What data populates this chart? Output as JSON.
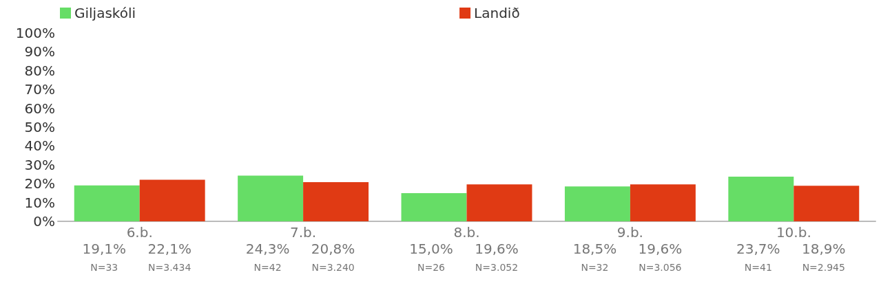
{
  "chart_data": {
    "type": "bar",
    "categories": [
      "6.b.",
      "7.b.",
      "8.b.",
      "9.b.",
      "10.b."
    ],
    "series": [
      {
        "name": "Giljaskóli",
        "color": "#66dd66",
        "values": [
          19.1,
          24.3,
          15.0,
          18.5,
          23.7
        ],
        "value_labels": [
          "19,1%",
          "24,3%",
          "15,0%",
          "18,5%",
          "23,7%"
        ]
      },
      {
        "name": "Landið",
        "color": "#e03a14",
        "values": [
          22.1,
          20.8,
          19.6,
          19.6,
          18.9
        ],
        "value_labels": [
          "22,1%",
          "20,8%",
          "19,6%",
          "19,6%",
          "18,9%"
        ]
      }
    ],
    "annotations": [
      "N=33",
      "N=3.434",
      "N=42",
      "N=3.240",
      "N=26",
      "N=3.052",
      "N=32",
      "N=3.056",
      "N=41",
      "N=2.945"
    ],
    "ylim": [
      0,
      100
    ],
    "yticks": [
      {
        "value": 0,
        "label": "0%"
      },
      {
        "value": 10,
        "label": "10%"
      },
      {
        "value": 20,
        "label": "20%"
      },
      {
        "value": 30,
        "label": "30%"
      },
      {
        "value": 40,
        "label": "40%"
      },
      {
        "value": 50,
        "label": "50%"
      },
      {
        "value": 60,
        "label": "60%"
      },
      {
        "value": 70,
        "label": "70%"
      },
      {
        "value": 80,
        "label": "80%"
      },
      {
        "value": 90,
        "label": "90%"
      },
      {
        "value": 100,
        "label": "100%"
      }
    ],
    "grid": false,
    "legend": "top"
  }
}
